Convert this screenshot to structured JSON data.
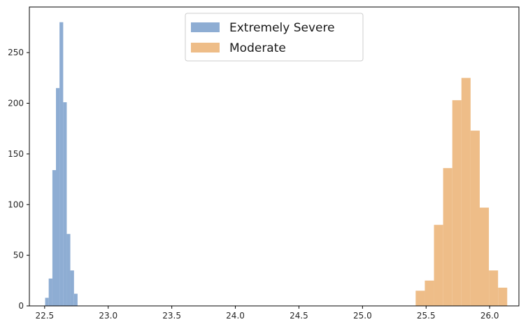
{
  "chart_data": {
    "type": "histogram",
    "title": "",
    "xlabel": "",
    "ylabel": "",
    "xlim": [
      22.38,
      26.23
    ],
    "ylim": [
      0,
      295
    ],
    "x_ticks": [
      22.5,
      23.0,
      23.5,
      24.0,
      24.5,
      25.0,
      25.5,
      26.0
    ],
    "x_tick_labels": [
      "22.5",
      "23.0",
      "23.5",
      "24.0",
      "24.5",
      "25.0",
      "25.5",
      "26.0"
    ],
    "y_ticks": [
      0,
      50,
      100,
      150,
      200,
      250
    ],
    "y_tick_labels": [
      "0",
      "50",
      "100",
      "150",
      "200",
      "250"
    ],
    "grid": false,
    "legend_position": "top-center",
    "series": [
      {
        "name": "Extremely Severe",
        "color": "#8eadd3",
        "bin_edges": [
          22.504,
          22.532,
          22.561,
          22.589,
          22.617,
          22.646,
          22.674,
          22.702,
          22.731,
          22.759,
          22.787
        ],
        "counts": [
          8,
          27,
          134,
          215,
          280,
          201,
          71,
          35,
          12,
          0
        ]
      },
      {
        "name": "Moderate",
        "color": "#eebd88",
        "bin_edges": [
          25.418,
          25.49,
          25.562,
          25.634,
          25.706,
          25.778,
          25.85,
          25.922,
          25.994,
          26.066,
          26.138
        ],
        "counts": [
          15,
          25,
          80,
          136,
          203,
          225,
          173,
          97,
          35,
          18
        ]
      }
    ]
  }
}
